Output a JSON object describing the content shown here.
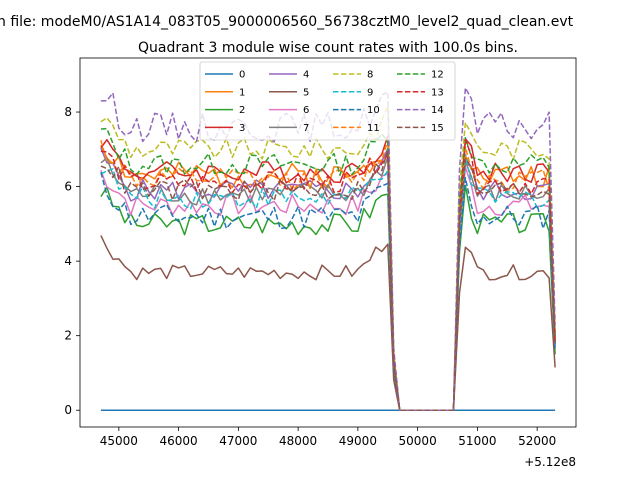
{
  "chart_data": {
    "type": "line",
    "suptitle": "n file: modeM0/AS1A14_083T05_9000006560_56738cztM0_level2_quad_clean.evt",
    "title": "Quadrant 3 module wise count rates with 100.0s bins.",
    "xlabel": "",
    "ylabel": "",
    "offset_label": "+5.12e8",
    "xlim": [
      44350,
      52650
    ],
    "ylim": [
      -0.45,
      9.45
    ],
    "x_ticks": [
      45000,
      46000,
      47000,
      48000,
      49000,
      50000,
      51000,
      52000
    ],
    "x_tick_labels": [
      "45000",
      "46000",
      "47000",
      "48000",
      "49000",
      "50000",
      "51000",
      "52000"
    ],
    "y_ticks": [
      0,
      2,
      4,
      6,
      8
    ],
    "y_tick_labels": [
      "0",
      "2",
      "4",
      "6",
      "8"
    ],
    "x_start": 44700,
    "bin_width": 100,
    "n_bins": 77,
    "gap": {
      "drop_from": 49600,
      "zero_from": 49700,
      "zero_to": 50600,
      "rise_at": 50700
    },
    "legend": {
      "position": "upper-center",
      "columns": 4
    },
    "series": [
      {
        "name": "0",
        "color": "#1f77b4",
        "dash": false,
        "level": 0.0,
        "amp": 0.0,
        "end": 0.0,
        "seed": 1
      },
      {
        "name": "1",
        "color": "#ff7f0e",
        "dash": false,
        "level": 6.3,
        "amp": 0.35,
        "end": 2.0,
        "seed": 2
      },
      {
        "name": "2",
        "color": "#2ca02c",
        "dash": false,
        "level": 5.0,
        "amp": 0.3,
        "end": 1.5,
        "seed": 3
      },
      {
        "name": "3",
        "color": "#d62728",
        "dash": false,
        "level": 6.4,
        "amp": 0.3,
        "end": 1.8,
        "seed": 4
      },
      {
        "name": "4",
        "color": "#9467bd",
        "dash": false,
        "level": 5.9,
        "amp": 0.3,
        "end": 1.9,
        "seed": 5
      },
      {
        "name": "5",
        "color": "#8c564b",
        "dash": false,
        "level": 3.7,
        "amp": 0.2,
        "end": 1.15,
        "seed": 6
      },
      {
        "name": "6",
        "color": "#e377c2",
        "dash": false,
        "level": 5.5,
        "amp": 0.3,
        "end": 1.7,
        "seed": 7
      },
      {
        "name": "7",
        "color": "#7f7f7f",
        "dash": false,
        "level": 5.8,
        "amp": 0.3,
        "end": 1.8,
        "seed": 8
      },
      {
        "name": "8",
        "color": "#bcbd22",
        "dash": true,
        "level": 7.0,
        "amp": 0.3,
        "end": 2.1,
        "seed": 9
      },
      {
        "name": "9",
        "color": "#17becf",
        "dash": true,
        "level": 5.7,
        "amp": 0.3,
        "end": 1.7,
        "seed": 10
      },
      {
        "name": "10",
        "color": "#1f77b4",
        "dash": true,
        "level": 5.2,
        "amp": 0.35,
        "end": 1.6,
        "seed": 11
      },
      {
        "name": "11",
        "color": "#ff7f0e",
        "dash": true,
        "level": 6.2,
        "amp": 0.3,
        "end": 1.9,
        "seed": 12
      },
      {
        "name": "12",
        "color": "#2ca02c",
        "dash": true,
        "level": 6.6,
        "amp": 0.3,
        "end": 2.0,
        "seed": 13
      },
      {
        "name": "13",
        "color": "#d62728",
        "dash": true,
        "level": 6.1,
        "amp": 0.3,
        "end": 1.8,
        "seed": 14
      },
      {
        "name": "14",
        "color": "#9467bd",
        "dash": true,
        "level": 7.6,
        "amp": 0.4,
        "end": 2.3,
        "seed": 15
      },
      {
        "name": "15",
        "color": "#8c564b",
        "dash": true,
        "level": 5.9,
        "amp": 0.3,
        "end": 1.8,
        "seed": 16
      }
    ]
  }
}
